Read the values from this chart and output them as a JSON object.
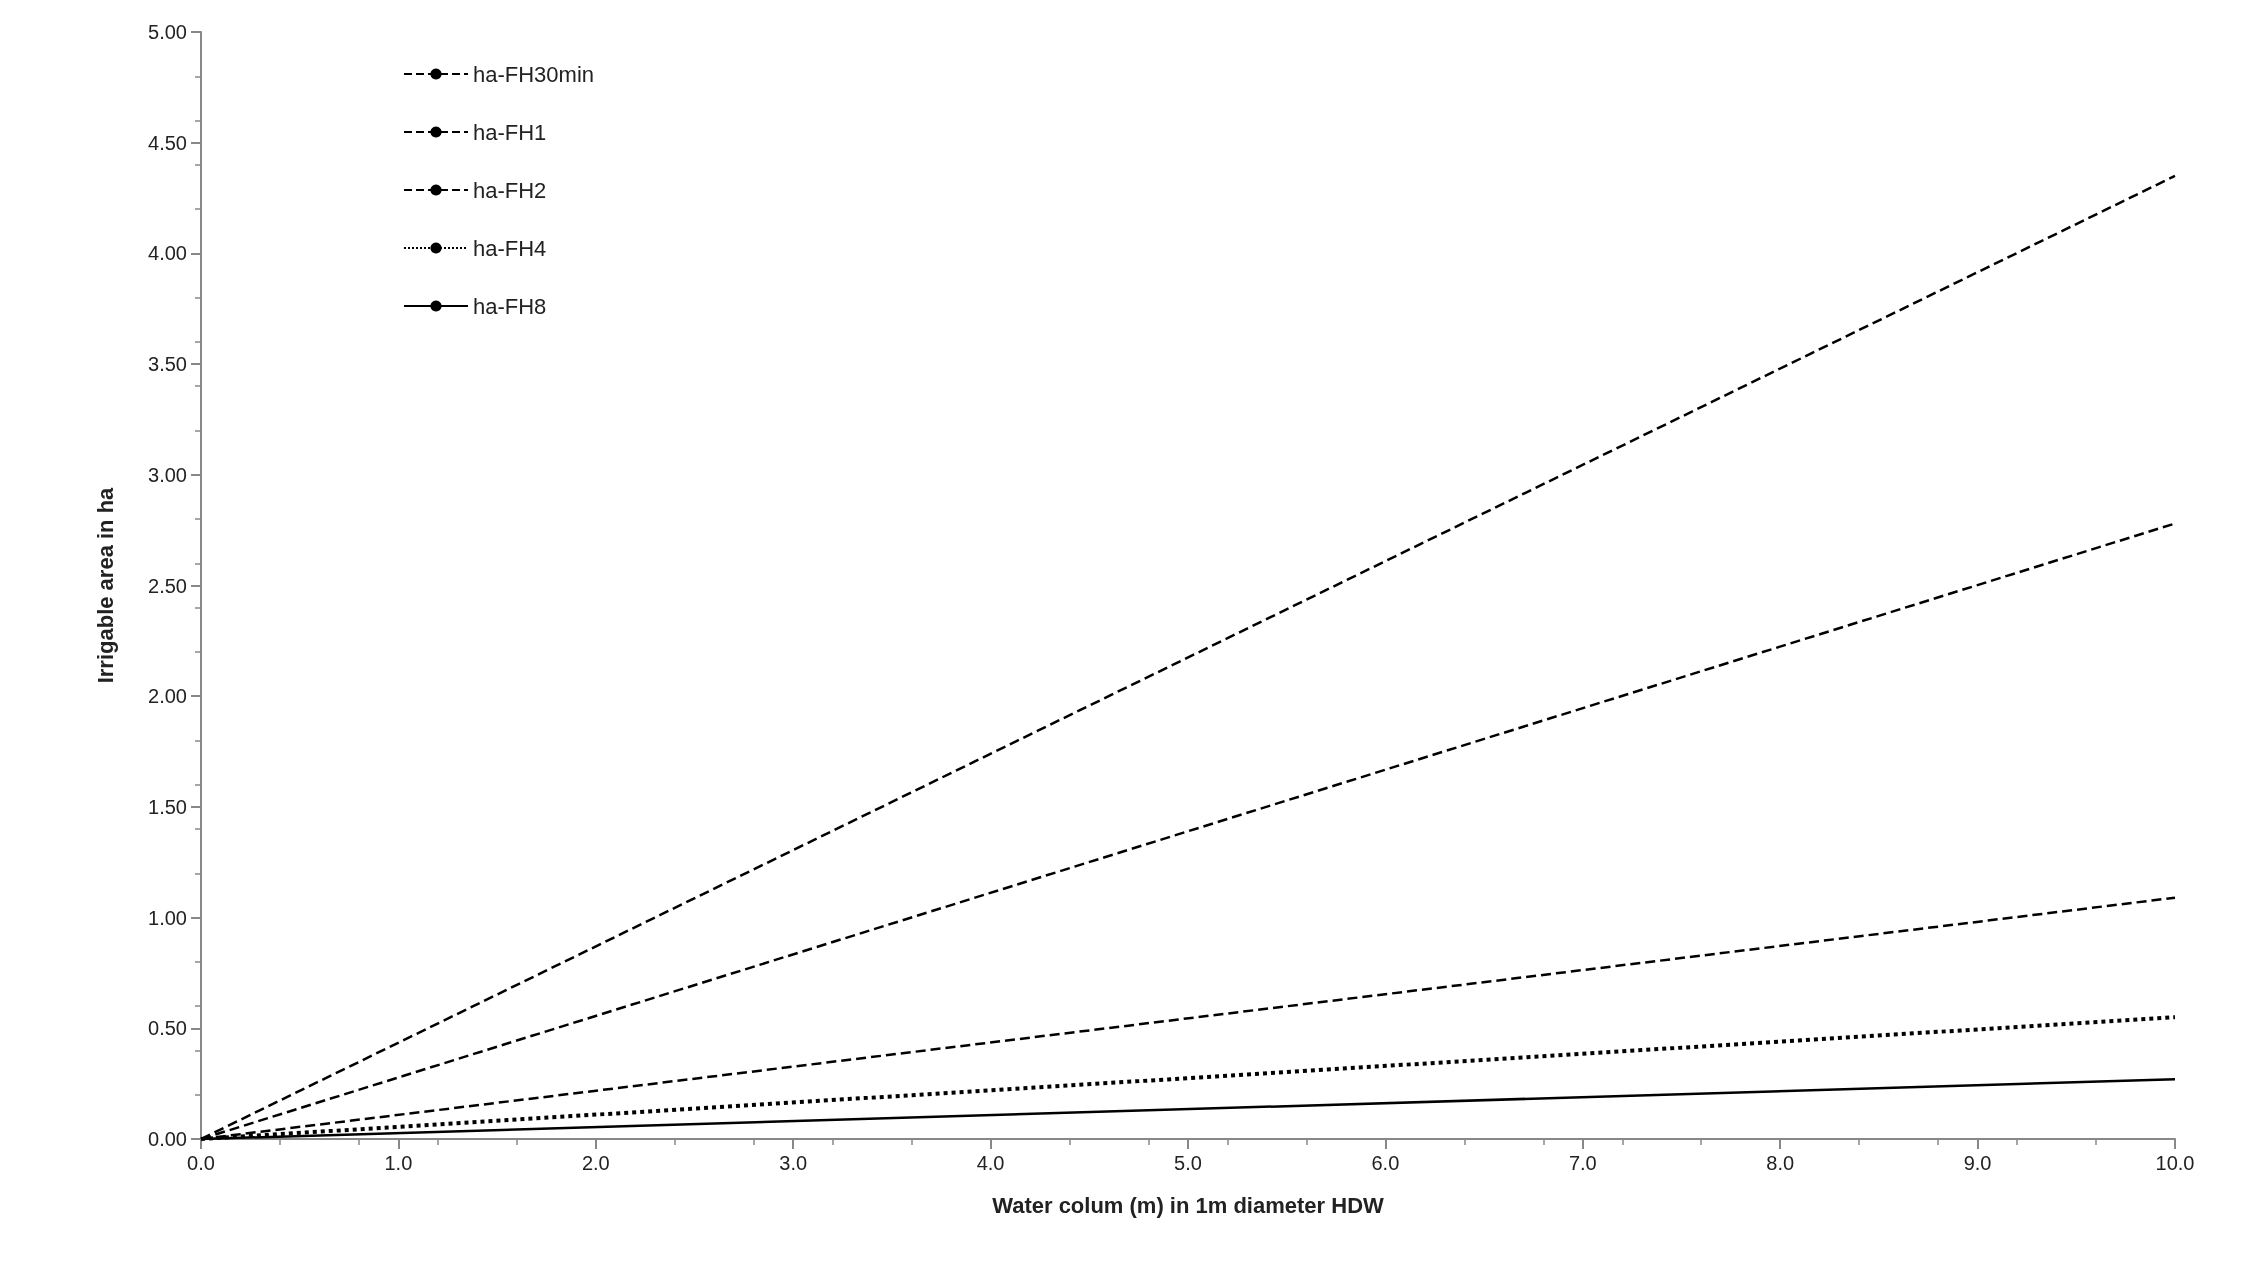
{
  "chart_data": {
    "type": "line",
    "xlabel": "Water colum (m) in 1m diameter HDW",
    "ylabel": "Irrigable area in ha",
    "x": [
      0,
      10
    ],
    "series": [
      {
        "name": "ha-FH30min",
        "color": "#000000",
        "line_style": "dashed",
        "values": [
          0,
          4.35
        ]
      },
      {
        "name": "ha-FH1",
        "color": "#000000",
        "line_style": "dashed",
        "values": [
          0,
          2.78
        ]
      },
      {
        "name": "ha-FH2",
        "color": "#000000",
        "line_style": "dashed",
        "values": [
          0,
          1.09
        ]
      },
      {
        "name": "ha-FH4",
        "color": "#000000",
        "line_style": "dotted",
        "values": [
          0,
          0.55
        ]
      },
      {
        "name": "ha-FH8",
        "color": "#000000",
        "line_style": "solid",
        "values": [
          0,
          0.27
        ]
      }
    ],
    "xlim": [
      0,
      10
    ],
    "xticks": [
      {
        "value": 0,
        "label": "0.0"
      },
      {
        "value": 1,
        "label": "1.0"
      },
      {
        "value": 2,
        "label": "2.0"
      },
      {
        "value": 3,
        "label": "3.0"
      },
      {
        "value": 4,
        "label": "4.0"
      },
      {
        "value": 5,
        "label": "5.0"
      },
      {
        "value": 6,
        "label": "6.0"
      },
      {
        "value": 7,
        "label": "7.0"
      },
      {
        "value": 8,
        "label": "8.0"
      },
      {
        "value": 9,
        "label": "9.0"
      },
      {
        "value": 10,
        "label": "10.0"
      }
    ],
    "ylim": [
      0,
      5
    ],
    "yticks": [
      {
        "value": 0,
        "label": "0.00"
      },
      {
        "value": 0.5,
        "label": "0.50"
      },
      {
        "value": 1,
        "label": "1.00"
      },
      {
        "value": 1.5,
        "label": "1.50"
      },
      {
        "value": 2,
        "label": "2.00"
      },
      {
        "value": 2.5,
        "label": "2.50"
      },
      {
        "value": 3,
        "label": "3.00"
      },
      {
        "value": 3.5,
        "label": "3.50"
      },
      {
        "value": 4,
        "label": "4.00"
      },
      {
        "value": 4.5,
        "label": "4.50"
      },
      {
        "value": 5,
        "label": "5.00"
      }
    ],
    "grid": false,
    "legend": "top left",
    "marker": "none"
  }
}
